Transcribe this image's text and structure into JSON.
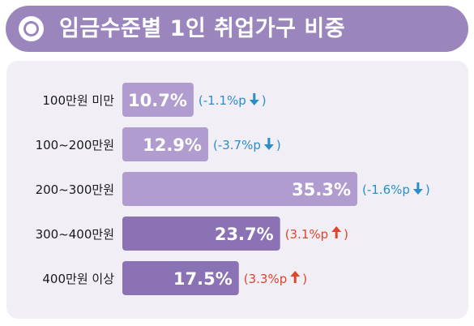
{
  "header": {
    "title": "임금수준별 1인 취업가구 비중"
  },
  "colors": {
    "title_bg": "#9a86bd",
    "panel_bg": "#f1eff5",
    "bar_light": "#b09cce",
    "bar_dark": "#8a72b4",
    "change_down": "#2a8ec8",
    "change_up": "#e0452c"
  },
  "chart_data": {
    "type": "bar",
    "orientation": "horizontal",
    "title": "임금수준별 1인 취업가구 비중",
    "categories": [
      "100만원 미만",
      "100~200만원",
      "200~300만원",
      "300~400만원",
      "400만원 이상"
    ],
    "values": [
      10.7,
      12.9,
      35.3,
      23.7,
      17.5
    ],
    "value_labels": [
      "10.7%",
      "12.9%",
      "35.3%",
      "23.7%",
      "17.5%"
    ],
    "changes": [
      {
        "text": "(-1.1%p",
        "direction": "down"
      },
      {
        "text": "(-3.7%p",
        "direction": "down"
      },
      {
        "text": "(-1.6%p",
        "direction": "down"
      },
      {
        "text": "(3.1%p",
        "direction": "up"
      },
      {
        "text": "(3.3%p",
        "direction": "up"
      }
    ],
    "change_values": [
      -1.1,
      -3.7,
      -1.6,
      3.1,
      3.3
    ],
    "closing_paren": ")",
    "xlim": [
      0,
      35.3
    ]
  }
}
